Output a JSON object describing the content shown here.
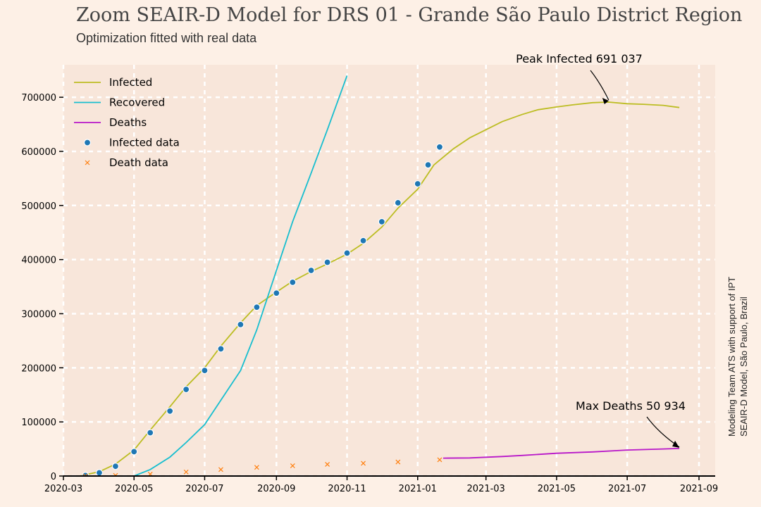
{
  "header": {
    "title": "Zoom SEAIR-D Model for DRS 01 - Grande São Paulo District Region",
    "subtitle": "Optimization fitted with real data"
  },
  "credit": {
    "line1": "Modeling Team ATS with support of IPT",
    "line2": "SEAIR-D Model, São Paulo, Brazil"
  },
  "colors": {
    "background": "#fdf0e6",
    "plot_background": "#f8e6da",
    "infected": "#bcbd22",
    "recovered": "#17becf",
    "deaths": "#b817c9",
    "infected_data": "#1f77b4",
    "death_data": "#ff7f0e"
  },
  "chart_data": {
    "type": "line",
    "xlabel": "",
    "ylabel": "",
    "xlim": [
      "2020-03-01",
      "2021-09-15"
    ],
    "ylim": [
      0,
      760000
    ],
    "x_ticks": [
      "2020-03",
      "2020-05",
      "2020-07",
      "2020-09",
      "2020-11",
      "2021-01",
      "2021-03",
      "2021-05",
      "2021-07",
      "2021-09"
    ],
    "y_ticks": [
      0,
      100000,
      200000,
      300000,
      400000,
      500000,
      600000,
      700000
    ],
    "grid": true,
    "legend_position": "top-left",
    "series": [
      {
        "name": "Infected",
        "kind": "line",
        "points": [
          [
            "2020-03-15",
            0
          ],
          [
            "2020-04-01",
            8000
          ],
          [
            "2020-04-15",
            22000
          ],
          [
            "2020-05-01",
            48000
          ],
          [
            "2020-05-15",
            85000
          ],
          [
            "2020-06-01",
            128000
          ],
          [
            "2020-06-15",
            165000
          ],
          [
            "2020-07-01",
            200000
          ],
          [
            "2020-07-15",
            240000
          ],
          [
            "2020-08-01",
            283000
          ],
          [
            "2020-08-15",
            315000
          ],
          [
            "2020-09-01",
            340000
          ],
          [
            "2020-09-15",
            360000
          ],
          [
            "2020-10-01",
            378000
          ],
          [
            "2020-10-15",
            392000
          ],
          [
            "2020-11-01",
            410000
          ],
          [
            "2020-11-15",
            430000
          ],
          [
            "2020-12-01",
            460000
          ],
          [
            "2020-12-15",
            495000
          ],
          [
            "2021-01-01",
            530000
          ],
          [
            "2021-01-15",
            575000
          ],
          [
            "2021-02-01",
            605000
          ],
          [
            "2021-02-15",
            625000
          ],
          [
            "2021-03-01",
            640000
          ],
          [
            "2021-03-15",
            655000
          ],
          [
            "2021-04-01",
            668000
          ],
          [
            "2021-04-15",
            677000
          ],
          [
            "2021-05-01",
            682000
          ],
          [
            "2021-05-15",
            686000
          ],
          [
            "2021-06-01",
            690000
          ],
          [
            "2021-06-15",
            691037
          ],
          [
            "2021-07-01",
            688000
          ],
          [
            "2021-07-15",
            687000
          ],
          [
            "2021-08-01",
            685000
          ],
          [
            "2021-08-15",
            681000
          ]
        ]
      },
      {
        "name": "Recovered",
        "kind": "line",
        "points": [
          [
            "2020-05-01",
            0
          ],
          [
            "2020-05-15",
            12000
          ],
          [
            "2020-06-01",
            35000
          ],
          [
            "2020-06-15",
            62000
          ],
          [
            "2020-07-01",
            95000
          ],
          [
            "2020-07-15",
            140000
          ],
          [
            "2020-08-01",
            195000
          ],
          [
            "2020-08-15",
            270000
          ],
          [
            "2020-09-01",
            380000
          ],
          [
            "2020-09-15",
            470000
          ],
          [
            "2020-10-01",
            560000
          ],
          [
            "2020-10-15",
            640000
          ],
          [
            "2020-11-01",
            740000
          ]
        ]
      },
      {
        "name": "Deaths",
        "kind": "line",
        "points": [
          [
            "2021-01-23",
            33000
          ],
          [
            "2021-02-15",
            33500
          ],
          [
            "2021-03-15",
            36000
          ],
          [
            "2021-04-01",
            38000
          ],
          [
            "2021-05-01",
            42000
          ],
          [
            "2021-06-01",
            44500
          ],
          [
            "2021-07-01",
            48000
          ],
          [
            "2021-08-01",
            50000
          ],
          [
            "2021-08-15",
            50934
          ]
        ]
      },
      {
        "name": "Infected data",
        "kind": "scatter",
        "points": [
          [
            "2020-03-20",
            1000
          ],
          [
            "2020-04-01",
            6000
          ],
          [
            "2020-04-15",
            18000
          ],
          [
            "2020-05-01",
            45000
          ],
          [
            "2020-05-15",
            80000
          ],
          [
            "2020-06-01",
            120000
          ],
          [
            "2020-06-15",
            160000
          ],
          [
            "2020-07-01",
            195000
          ],
          [
            "2020-07-15",
            235000
          ],
          [
            "2020-08-01",
            280000
          ],
          [
            "2020-08-15",
            312000
          ],
          [
            "2020-09-01",
            338000
          ],
          [
            "2020-09-15",
            358000
          ],
          [
            "2020-10-01",
            380000
          ],
          [
            "2020-10-15",
            395000
          ],
          [
            "2020-11-01",
            412000
          ],
          [
            "2020-11-15",
            435000
          ],
          [
            "2020-12-01",
            470000
          ],
          [
            "2020-12-15",
            505000
          ],
          [
            "2021-01-01",
            540000
          ],
          [
            "2021-01-10",
            575000
          ],
          [
            "2021-01-20",
            608000
          ]
        ]
      },
      {
        "name": "Death data",
        "kind": "scatter",
        "points": [
          [
            "2020-03-20",
            0
          ],
          [
            "2020-04-15",
            1000
          ],
          [
            "2020-05-15",
            3500
          ],
          [
            "2020-06-15",
            7500
          ],
          [
            "2020-07-15",
            12000
          ],
          [
            "2020-08-15",
            16000
          ],
          [
            "2020-09-15",
            19000
          ],
          [
            "2020-10-15",
            21500
          ],
          [
            "2020-11-15",
            23500
          ],
          [
            "2020-12-15",
            26000
          ],
          [
            "2021-01-20",
            30000
          ]
        ]
      }
    ],
    "annotations": [
      {
        "text": "Peak Infected 691 037",
        "x": "2021-06-15",
        "y": 691037
      },
      {
        "text": "Max Deaths 50 934",
        "x": "2021-08-15",
        "y": 50934
      }
    ]
  }
}
